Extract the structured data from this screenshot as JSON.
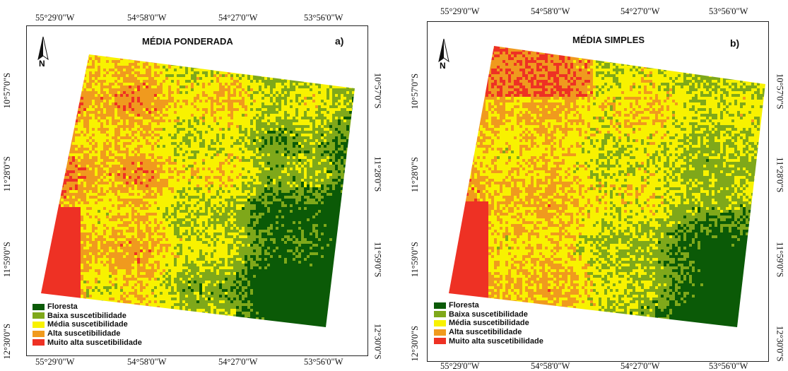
{
  "colors": {
    "floresta": "#0b5a07",
    "baixa": "#7fa81a",
    "media": "#f8f200",
    "alta": "#f09a1e",
    "muito_alta": "#ee3124"
  },
  "legend": [
    {
      "label": "Floresta",
      "color": "#0b5a07"
    },
    {
      "label": "Baixa suscetibilidade",
      "color": "#7fa81a"
    },
    {
      "label": "Média suscetibilidade",
      "color": "#f8f200"
    },
    {
      "label": "Alta suscetibilidade",
      "color": "#f09a1e"
    },
    {
      "label": "Muito alta suscetibilidade",
      "color": "#ee3124"
    }
  ],
  "north_label": "N",
  "lon_ticks": [
    "55°29'0\"W",
    "54°58'0\"W",
    "54°27'0\"W",
    "53°56'0\"W"
  ],
  "lat_ticks": [
    "10°57'0\"S",
    "11°28'0\"S",
    "11°59'0\"S",
    "12°30'0\"S"
  ],
  "panels": {
    "a": {
      "title": "MÉDIA PONDERADA",
      "letter": "a)"
    },
    "b": {
      "title": "MÉDIA SIMPLES",
      "letter": "b)"
    }
  }
}
